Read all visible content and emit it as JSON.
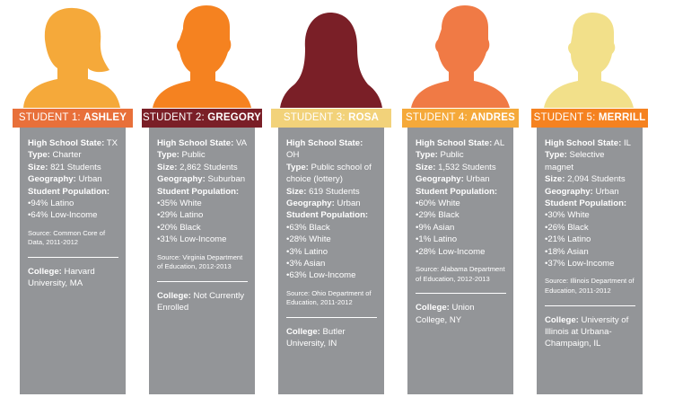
{
  "students": [
    {
      "banner_prefix": "STUDENT 1:",
      "name": "ASHLEY",
      "banner_color": "#e8703a",
      "silhouette_color": "#f5a93a",
      "silhouette_icon": "woman-bob-silhouette",
      "state_label": "High School State:",
      "state": "TX",
      "type_label": "Type:",
      "type": "Charter",
      "size_label": "Size:",
      "size": "821 Students",
      "geo_label": "Geography:",
      "geo": "Urban",
      "pop_label": "Student Population:",
      "population": [
        "94% Latino",
        "64% Low-Income"
      ],
      "source": "Source: Common Core of Data, 2011-2012",
      "college_label": "College:",
      "college": "Harvard University, MA"
    },
    {
      "banner_prefix": "STUDENT 2:",
      "name": "GREGORY",
      "banner_color": "#7a1f27",
      "silhouette_color": "#f58220",
      "silhouette_icon": "man-silhouette",
      "state_label": "High School State:",
      "state": "VA",
      "type_label": "Type:",
      "type": "Public",
      "size_label": "Size:",
      "size": "2,862 Students",
      "geo_label": "Geography:",
      "geo": "Suburban",
      "pop_label": "Student Population:",
      "population": [
        "35% White",
        "29% Latino",
        "20% Black",
        "31% Low-Income"
      ],
      "source": "Source: Virginia Department of Education, 2012-2013",
      "college_label": "College:",
      "college": "Not Currently Enrolled"
    },
    {
      "banner_prefix": "STUDENT 3:",
      "name": "ROSA",
      "banner_color": "#f2d27a",
      "silhouette_color": "#7a1f27",
      "silhouette_icon": "woman-long-hair-silhouette",
      "state_label": "High School State:",
      "state": "OH",
      "type_label": "Type:",
      "type": "Public school of choice (lottery)",
      "size_label": "Size:",
      "size": "619 Students",
      "geo_label": "Geography:",
      "geo": "Urban",
      "pop_label": "Student Population:",
      "population": [
        "63% Black",
        "28% White",
        "3% Latino",
        "3% Asian",
        "63% Low-Income"
      ],
      "source": "Source: Ohio Department of Education, 2011-2012",
      "college_label": "College:",
      "college": "Butler University, IN"
    },
    {
      "banner_prefix": "STUDENT 4:",
      "name": "ANDRES",
      "banner_color": "#f5a93a",
      "silhouette_color": "#f07a45",
      "silhouette_icon": "man-silhouette",
      "state_label": "High School State:",
      "state": "AL",
      "type_label": "Type:",
      "type": "Public",
      "size_label": "Size:",
      "size": "1,532 Students",
      "geo_label": "Geography:",
      "geo": "Urban",
      "pop_label": "Student Population:",
      "population": [
        "60% White",
        "29% Black",
        "9% Asian",
        "1% Latino",
        "28% Low-Income"
      ],
      "source": "Source: Alabama Department of Education, 2012-2013",
      "college_label": "College:",
      "college": "Union College, NY"
    },
    {
      "banner_prefix": "STUDENT 5:",
      "name": "MERRILL",
      "banner_color": "#f58220",
      "silhouette_color": "#f2e08a",
      "silhouette_icon": "man-slim-silhouette",
      "state_label": "High School State:",
      "state": "IL",
      "type_label": "Type:",
      "type": "Selective magnet",
      "size_label": "Size:",
      "size": "2,094 Students",
      "geo_label": "Geography:",
      "geo": "Urban",
      "pop_label": "Student Population:",
      "population": [
        "30% White",
        "26% Black",
        "21% Latino",
        "18% Asian",
        "37% Low-Income"
      ],
      "source": "Source: Illinois Department of Education, 2011-2012",
      "college_label": "College:",
      "college": "University of Illinois at Urbana-Champaign, IL"
    }
  ]
}
